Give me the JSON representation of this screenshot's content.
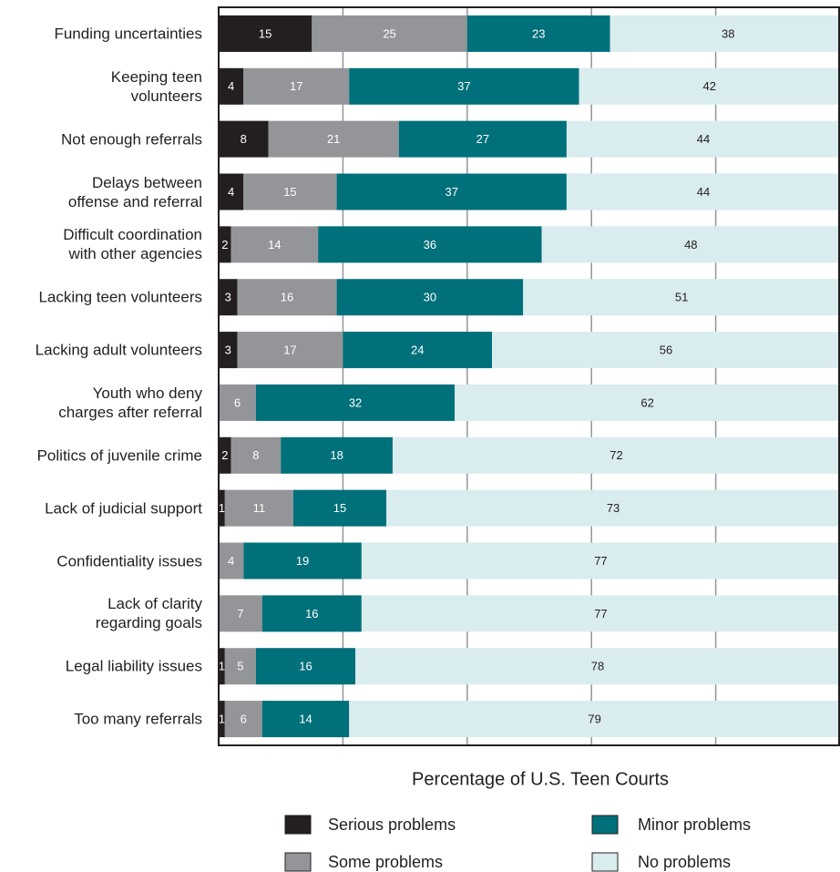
{
  "chart_data": {
    "type": "stacked_bar_horizontal",
    "categories": [
      "Funding uncertainties",
      "Keeping teen\nvolunteers",
      "Not enough referrals",
      "Delays between\noffense and referral",
      "Difficult coordination\nwith other agencies",
      "Lacking teen volunteers",
      "Lacking adult volunteers",
      "Youth who deny\ncharges after referral",
      "Politics of juvenile crime",
      "Lack of judicial support",
      "Confidentiality issues",
      "Lack of clarity\nregarding goals",
      "Legal liability issues",
      "Too many referrals"
    ],
    "series": [
      {
        "name": "Serious problems",
        "color": "#231f20",
        "text_color": "#ffffff",
        "values": [
          15,
          4,
          8,
          4,
          2,
          3,
          3,
          null,
          2,
          1,
          null,
          null,
          1,
          1
        ]
      },
      {
        "name": "Some problems",
        "color": "#939598",
        "text_color": "#ffffff",
        "values": [
          25,
          17,
          21,
          15,
          14,
          16,
          17,
          6,
          8,
          11,
          4,
          7,
          5,
          6
        ]
      },
      {
        "name": "Minor problems",
        "color": "#00707a",
        "text_color": "#ffffff",
        "values": [
          23,
          37,
          27,
          37,
          36,
          30,
          24,
          32,
          18,
          15,
          19,
          16,
          16,
          14
        ]
      },
      {
        "name": "No problems",
        "color": "#d9ecee",
        "text_color": "#231f20",
        "values": [
          38,
          42,
          44,
          44,
          48,
          51,
          56,
          62,
          72,
          73,
          77,
          77,
          78,
          79
        ]
      }
    ],
    "x_label": "Percentage of U.S. Teen Courts",
    "xlim": [
      0,
      100
    ],
    "xticks": [
      20,
      40,
      60,
      80
    ],
    "grid": true,
    "legend": "bottom"
  }
}
